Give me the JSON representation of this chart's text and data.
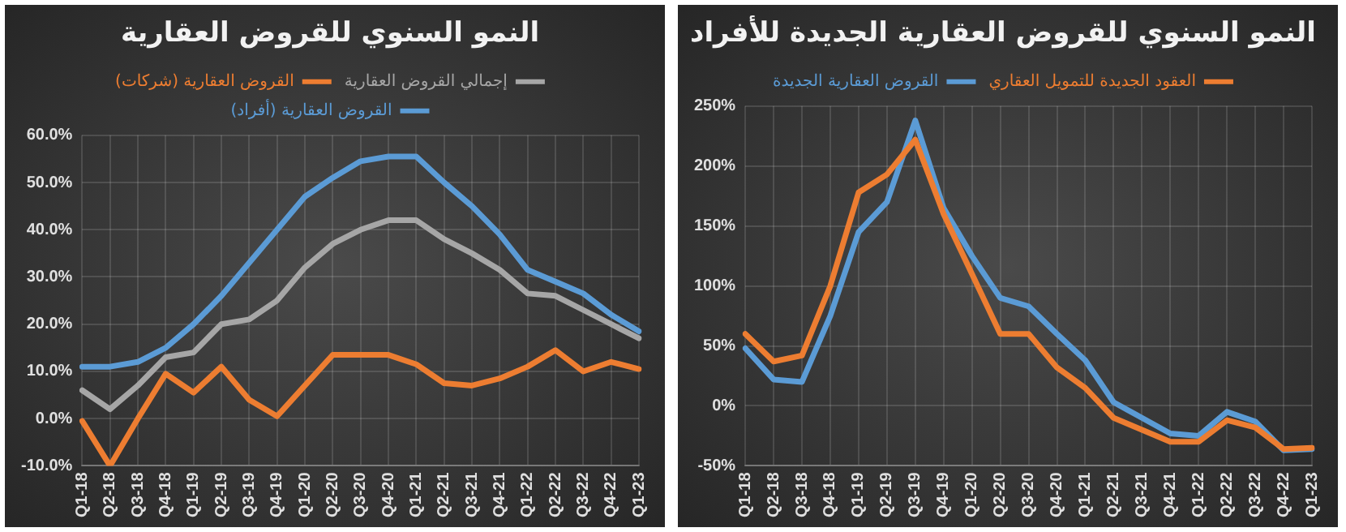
{
  "chart_data": [
    {
      "type": "line",
      "title": "النمو السنوي للقروض العقارية",
      "categories": [
        "Q1-18",
        "Q2-18",
        "Q3-18",
        "Q4-18",
        "Q1-19",
        "Q2-19",
        "Q3-19",
        "Q4-19",
        "Q1-20",
        "Q2-20",
        "Q3-20",
        "Q4-20",
        "Q1-21",
        "Q2-21",
        "Q3-21",
        "Q4-21",
        "Q1-22",
        "Q2-22",
        "Q3-22",
        "Q4-22",
        "Q1-23"
      ],
      "series": [
        {
          "name": "إجمالي القروض العقارية",
          "color": "#a6a6a6",
          "values": [
            6,
            2,
            7,
            13,
            14,
            20,
            21,
            25,
            32,
            37,
            40,
            42,
            42,
            38,
            35,
            31.5,
            26.5,
            26,
            23,
            20,
            17
          ]
        },
        {
          "name": "القروض العقارية (شركات)",
          "color": "#ed7d31",
          "values": [
            -0.5,
            -10,
            0,
            9.5,
            5.5,
            11,
            4,
            0.5,
            7,
            13.5,
            13.5,
            13.5,
            11.5,
            7.5,
            7,
            8.5,
            11,
            14.5,
            10,
            12,
            10.5
          ]
        },
        {
          "name": "القروض العقارية (أفراد)",
          "color": "#5b9bd5",
          "values": [
            11,
            11,
            12,
            15,
            20,
            26,
            33,
            40,
            47,
            51,
            54.5,
            55.5,
            55.5,
            50,
            45,
            39,
            31.5,
            29,
            26.5,
            22,
            18.5
          ]
        }
      ],
      "ylim": [
        -10,
        60
      ],
      "yticks": [
        {
          "value": -10,
          "label": "-10.0%"
        },
        {
          "value": 0,
          "label": "0.0%"
        },
        {
          "value": 10,
          "label": "10.0%"
        },
        {
          "value": 20,
          "label": "20.0%"
        },
        {
          "value": 30,
          "label": "30.0%"
        },
        {
          "value": 40,
          "label": "40.0%"
        },
        {
          "value": 50,
          "label": "50.0%"
        },
        {
          "value": 60,
          "label": "60.0%"
        }
      ],
      "grid": true,
      "legend": "top",
      "marker": "none",
      "line_style": "solid"
    },
    {
      "type": "line",
      "title": "النمو السنوي للقروض العقارية الجديدة للأفراد",
      "categories": [
        "Q1-18",
        "Q2-18",
        "Q3-18",
        "Q4-18",
        "Q1-19",
        "Q2-19",
        "Q3-19",
        "Q4-19",
        "Q1-20",
        "Q2-20",
        "Q3-20",
        "Q4-20",
        "Q1-21",
        "Q2-21",
        "Q3-21",
        "Q4-21",
        "Q1-22",
        "Q2-22",
        "Q3-22",
        "Q4-22",
        "Q1-23"
      ],
      "series": [
        {
          "name": "العقود الجديدة للتمويل العقاري",
          "color": "#ed7d31",
          "values": [
            60,
            37,
            42,
            100,
            178,
            193,
            222,
            160,
            110,
            60,
            60,
            32,
            15,
            -10,
            -20,
            -30,
            -30,
            -12,
            -18,
            -36,
            -35
          ]
        },
        {
          "name": "القروض العقارية الجديدة",
          "color": "#5b9bd5",
          "values": [
            48,
            22,
            20,
            75,
            145,
            170,
            238,
            165,
            125,
            90,
            83,
            60,
            38,
            3,
            -10,
            -23,
            -25,
            -5,
            -13,
            -37,
            -36
          ]
        }
      ],
      "ylim": [
        -50,
        250
      ],
      "yticks": [
        {
          "value": -50,
          "label": "-50%"
        },
        {
          "value": 0,
          "label": "0%"
        },
        {
          "value": 50,
          "label": "50%"
        },
        {
          "value": 100,
          "label": "100%"
        },
        {
          "value": 150,
          "label": "150%"
        },
        {
          "value": 200,
          "label": "200%"
        },
        {
          "value": 250,
          "label": "250%"
        }
      ],
      "grid": true,
      "legend": "top",
      "marker": "none",
      "line_style": "solid"
    }
  ]
}
